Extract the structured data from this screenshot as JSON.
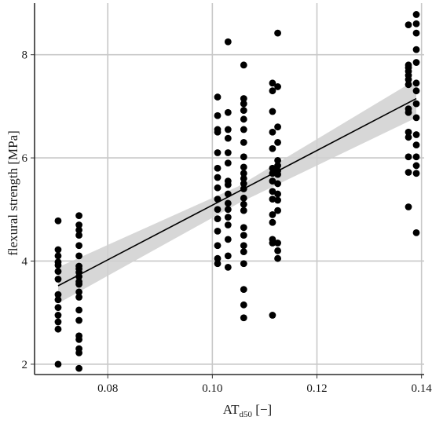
{
  "chart_data": {
    "type": "scatter",
    "title": "",
    "xlabel": {
      "main": "AT",
      "sub": "d50",
      "unit": " [−]"
    },
    "ylabel": "flexural strength [MPa]",
    "xlim": [
      0.066,
      0.1405
    ],
    "ylim": [
      1.8,
      9.0
    ],
    "x_ticks": [
      0.08,
      0.1,
      0.12,
      0.14
    ],
    "x_tick_labels": [
      "0.08",
      "0.10",
      "0.12",
      "0.14"
    ],
    "y_ticks": [
      2,
      4,
      6,
      8
    ],
    "y_tick_labels": [
      "2",
      "4",
      "6",
      "8"
    ],
    "grid": true,
    "legend": "none",
    "colors": {
      "points": "#000000",
      "ribbon": "#d0d0d0",
      "grid": "#c8c8c8",
      "axis": "#000000"
    },
    "points": [
      [
        0.0705,
        4.78
      ],
      [
        0.0705,
        4.22
      ],
      [
        0.0705,
        4.1
      ],
      [
        0.0705,
        3.98
      ],
      [
        0.0705,
        3.92
      ],
      [
        0.0705,
        3.8
      ],
      [
        0.0705,
        3.65
      ],
      [
        0.0705,
        3.35
      ],
      [
        0.0705,
        3.25
      ],
      [
        0.0705,
        3.1
      ],
      [
        0.0705,
        2.95
      ],
      [
        0.0705,
        2.82
      ],
      [
        0.0705,
        2.68
      ],
      [
        0.0705,
        2.0
      ],
      [
        0.0745,
        4.88
      ],
      [
        0.0745,
        4.7
      ],
      [
        0.0745,
        4.6
      ],
      [
        0.0745,
        4.5
      ],
      [
        0.0745,
        4.3
      ],
      [
        0.0745,
        4.1
      ],
      [
        0.0745,
        3.9
      ],
      [
        0.0745,
        3.85
      ],
      [
        0.0745,
        3.78
      ],
      [
        0.0745,
        3.7
      ],
      [
        0.0745,
        3.6
      ],
      [
        0.0745,
        3.55
      ],
      [
        0.0745,
        3.4
      ],
      [
        0.0745,
        3.3
      ],
      [
        0.0745,
        3.05
      ],
      [
        0.0745,
        2.85
      ],
      [
        0.0745,
        2.55
      ],
      [
        0.0745,
        2.48
      ],
      [
        0.0745,
        2.3
      ],
      [
        0.0745,
        2.22
      ],
      [
        0.0745,
        1.92
      ],
      [
        0.101,
        7.18
      ],
      [
        0.101,
        6.82
      ],
      [
        0.101,
        6.55
      ],
      [
        0.101,
        6.5
      ],
      [
        0.101,
        6.1
      ],
      [
        0.101,
        5.8
      ],
      [
        0.101,
        5.62
      ],
      [
        0.101,
        5.42
      ],
      [
        0.101,
        5.2
      ],
      [
        0.101,
        5.0
      ],
      [
        0.101,
        4.82
      ],
      [
        0.101,
        4.58
      ],
      [
        0.101,
        4.3
      ],
      [
        0.101,
        4.05
      ],
      [
        0.101,
        3.95
      ],
      [
        0.103,
        8.25
      ],
      [
        0.103,
        6.88
      ],
      [
        0.103,
        6.55
      ],
      [
        0.103,
        6.38
      ],
      [
        0.103,
        6.1
      ],
      [
        0.103,
        5.9
      ],
      [
        0.103,
        5.55
      ],
      [
        0.103,
        5.48
      ],
      [
        0.103,
        5.3
      ],
      [
        0.103,
        5.12
      ],
      [
        0.103,
        5.0
      ],
      [
        0.103,
        4.85
      ],
      [
        0.103,
        4.7
      ],
      [
        0.103,
        4.42
      ],
      [
        0.103,
        4.1
      ],
      [
        0.103,
        3.88
      ],
      [
        0.106,
        7.8
      ],
      [
        0.106,
        7.15
      ],
      [
        0.106,
        7.05
      ],
      [
        0.106,
        6.92
      ],
      [
        0.106,
        6.75
      ],
      [
        0.106,
        6.55
      ],
      [
        0.106,
        6.3
      ],
      [
        0.106,
        6.02
      ],
      [
        0.106,
        5.82
      ],
      [
        0.106,
        5.7
      ],
      [
        0.106,
        5.6
      ],
      [
        0.106,
        5.5
      ],
      [
        0.106,
        5.4
      ],
      [
        0.106,
        5.22
      ],
      [
        0.106,
        5.1
      ],
      [
        0.106,
        4.98
      ],
      [
        0.106,
        4.65
      ],
      [
        0.106,
        4.5
      ],
      [
        0.106,
        4.3
      ],
      [
        0.106,
        4.18
      ],
      [
        0.106,
        3.95
      ],
      [
        0.106,
        3.45
      ],
      [
        0.106,
        3.15
      ],
      [
        0.106,
        2.9
      ],
      [
        0.1115,
        7.45
      ],
      [
        0.1115,
        7.3
      ],
      [
        0.1115,
        6.9
      ],
      [
        0.1115,
        6.5
      ],
      [
        0.1115,
        6.18
      ],
      [
        0.1115,
        5.8
      ],
      [
        0.1115,
        5.7
      ],
      [
        0.1115,
        5.55
      ],
      [
        0.1115,
        5.35
      ],
      [
        0.1115,
        5.2
      ],
      [
        0.1115,
        4.9
      ],
      [
        0.1115,
        4.75
      ],
      [
        0.1115,
        4.42
      ],
      [
        0.1115,
        4.35
      ],
      [
        0.1115,
        2.95
      ],
      [
        0.1125,
        8.42
      ],
      [
        0.1125,
        7.38
      ],
      [
        0.1125,
        6.6
      ],
      [
        0.1125,
        6.3
      ],
      [
        0.1125,
        5.95
      ],
      [
        0.1125,
        5.85
      ],
      [
        0.1125,
        5.75
      ],
      [
        0.1125,
        5.68
      ],
      [
        0.1125,
        5.5
      ],
      [
        0.1125,
        5.3
      ],
      [
        0.1125,
        5.18
      ],
      [
        0.1125,
        4.98
      ],
      [
        0.1125,
        4.35
      ],
      [
        0.1125,
        4.2
      ],
      [
        0.1125,
        4.05
      ],
      [
        0.1375,
        8.58
      ],
      [
        0.1375,
        7.8
      ],
      [
        0.1375,
        7.75
      ],
      [
        0.1375,
        7.68
      ],
      [
        0.1375,
        7.6
      ],
      [
        0.1375,
        7.52
      ],
      [
        0.1375,
        7.42
      ],
      [
        0.1375,
        6.95
      ],
      [
        0.1375,
        6.88
      ],
      [
        0.1375,
        6.5
      ],
      [
        0.1375,
        6.4
      ],
      [
        0.1375,
        6.02
      ],
      [
        0.1375,
        5.72
      ],
      [
        0.1375,
        5.05
      ],
      [
        0.139,
        8.78
      ],
      [
        0.139,
        8.6
      ],
      [
        0.139,
        8.42
      ],
      [
        0.139,
        8.1
      ],
      [
        0.139,
        7.85
      ],
      [
        0.139,
        7.45
      ],
      [
        0.139,
        7.3
      ],
      [
        0.139,
        7.05
      ],
      [
        0.139,
        6.78
      ],
      [
        0.139,
        6.45
      ],
      [
        0.139,
        6.25
      ],
      [
        0.139,
        6.02
      ],
      [
        0.139,
        5.85
      ],
      [
        0.139,
        5.7
      ],
      [
        0.139,
        4.55
      ]
    ],
    "fit_line": {
      "x": [
        0.0705,
        0.139
      ],
      "y": [
        3.52,
        7.15
      ]
    },
    "confidence_band": {
      "x": [
        0.0705,
        0.105,
        0.139
      ],
      "lower": [
        3.18,
        5.12,
        6.78
      ],
      "upper": [
        3.88,
        5.45,
        7.52
      ]
    }
  }
}
